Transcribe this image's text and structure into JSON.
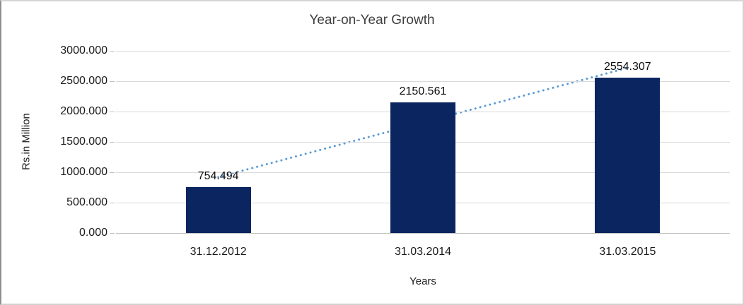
{
  "chart_data": {
    "type": "bar",
    "title": "Year-on-Year Growth",
    "xlabel": "Years",
    "ylabel": "Rs.in Million",
    "categories": [
      "31.12.2012",
      "31.03.2014",
      "31.03.2015"
    ],
    "values": [
      754.494,
      2150.561,
      2554.307
    ],
    "data_labels": [
      "754.494",
      "2150.561",
      "2554.307"
    ],
    "y_ticks": [
      "3000.000",
      "2500.000",
      "2000.000",
      "1500.000",
      "1000.000",
      "500.000",
      "0.000"
    ],
    "ylim": [
      0,
      3000
    ],
    "grid": true,
    "legend": "none",
    "colors": {
      "bar": "#0a2560",
      "trendline": "#5b9bd5",
      "gridline": "#d9d9d9",
      "axis_line": "#bfbfbf",
      "tick_mark": "#bfbfbf",
      "text": "#1a1a1a",
      "title": "#3f3f3f"
    },
    "trendline": {
      "type": "linear",
      "style": "dotted"
    }
  }
}
